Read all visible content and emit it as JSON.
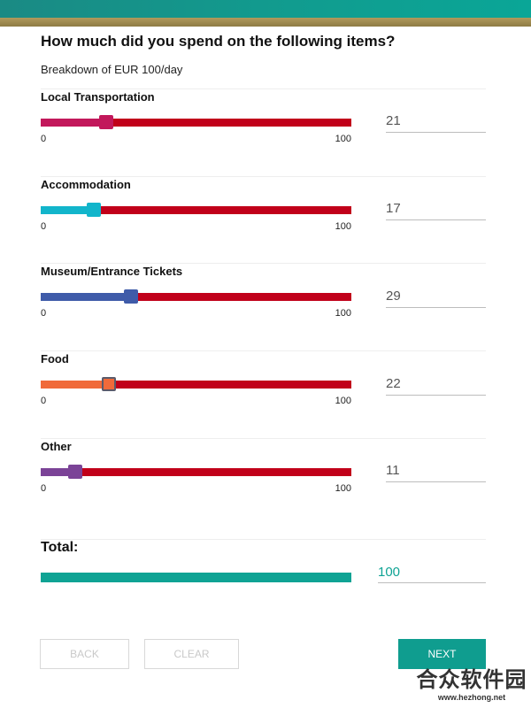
{
  "header": {
    "question": "How much did you spend on the following items?",
    "subtitle": "Breakdown of EUR 100/day"
  },
  "sliders": [
    {
      "label": "Local Transportation",
      "value": 21,
      "value_text": "21",
      "min_label": "0",
      "max_label": "100",
      "color": "#c2185b"
    },
    {
      "label": "Accommodation",
      "value": 17,
      "value_text": "17",
      "min_label": "0",
      "max_label": "100",
      "color": "#12b5cb"
    },
    {
      "label": "Museum/Entrance Tickets",
      "value": 29,
      "value_text": "29",
      "min_label": "0",
      "max_label": "100",
      "color": "#3f5ba9"
    },
    {
      "label": "Food",
      "value": 22,
      "value_text": "22",
      "min_label": "0",
      "max_label": "100",
      "color": "#f06a3a"
    },
    {
      "label": "Other",
      "value": 11,
      "value_text": "11",
      "min_label": "0",
      "max_label": "100",
      "color": "#7b4397"
    }
  ],
  "total": {
    "label": "Total:",
    "value_text": "100"
  },
  "buttons": {
    "back": "BACK",
    "clear": "CLEAR",
    "next": "NEXT"
  },
  "colors": {
    "track": "#c1001a",
    "accent": "#0f9d8f"
  },
  "watermark": {
    "text": "合众软件园",
    "url": "www.hezhong.net"
  }
}
